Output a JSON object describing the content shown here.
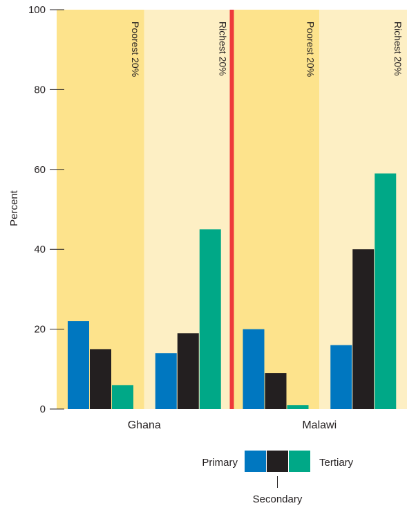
{
  "chart_data": {
    "type": "bar",
    "ylabel": "Percent",
    "ylim": [
      0,
      100
    ],
    "yticks": [
      0,
      20,
      40,
      60,
      80,
      100
    ],
    "countries": [
      {
        "name": "Ghana",
        "groups": [
          {
            "label": "Poorest 20%",
            "values": [
              22,
              15,
              6
            ]
          },
          {
            "label": "Richest 20%",
            "values": [
              14,
              19,
              45
            ]
          }
        ]
      },
      {
        "name": "Malawi",
        "groups": [
          {
            "label": "Poorest 20%",
            "values": [
              20,
              9,
              1
            ]
          },
          {
            "label": "Richest 20%",
            "values": [
              16,
              40,
              59
            ]
          }
        ]
      }
    ],
    "series": [
      {
        "name": "Primary",
        "color": "#0077c0"
      },
      {
        "name": "Secondary",
        "color": "#231f20"
      },
      {
        "name": "Tertiary",
        "color": "#00a887"
      }
    ],
    "background_colors": {
      "poorest": "#fde38c",
      "richest": "#fdefc4",
      "divider": "#ee3a3a"
    }
  }
}
